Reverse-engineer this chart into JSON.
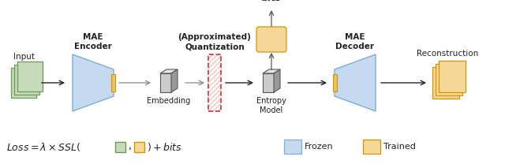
{
  "bg_color": "#ffffff",
  "fig_width": 6.4,
  "fig_height": 2.08,
  "input_label": "Input",
  "mae_encoder_label": "MAE\nEncoder",
  "quantization_label": "(Approximated)\nQuantization",
  "embedding_label": "Embedding",
  "entropy_label": "Entropy\nModel",
  "bits_label": "bits",
  "mae_decoder_label": "MAE\nDecoder",
  "reconstruction_label": "Reconstruction",
  "frozen_label": "Frozen",
  "trained_label": "Trained",
  "color_blue_light": "#c5d9f0",
  "color_blue_edge": "#7bafd4",
  "color_green_light": "#c8dbb8",
  "color_green_edge": "#6a9a5a",
  "color_orange_light": "#f5d896",
  "color_orange_mid": "#f0c060",
  "color_orange_edge": "#d4940a",
  "color_red": "#cc3333",
  "color_dark": "#222222",
  "color_3d_face": "#cccccc",
  "color_3d_side": "#999999",
  "color_3d_top": "#e5e5e5",
  "color_gray_arrow": "#888888"
}
